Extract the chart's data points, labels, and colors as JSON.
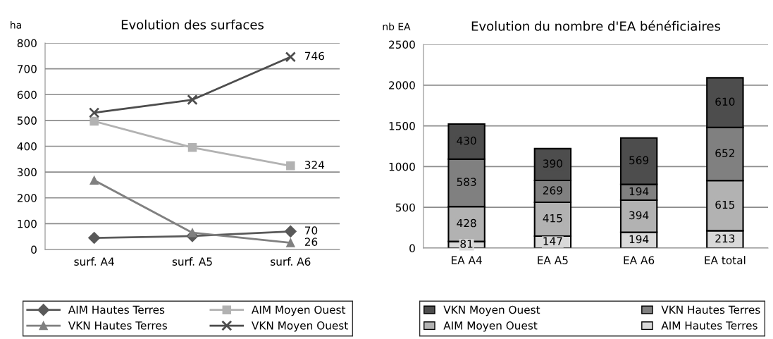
{
  "chart_data": [
    {
      "type": "line",
      "title": "Evolution des surfaces",
      "ylabel": "ha",
      "categories": [
        "surf. A4",
        "surf. A5",
        "surf. A6"
      ],
      "series": [
        {
          "name": "AIM Hautes Terres",
          "color": "#595959",
          "marker": "diamond",
          "values": [
            45,
            52,
            70
          ],
          "value_labels": [
            null,
            null,
            "70"
          ]
        },
        {
          "name": "AIM Moyen Ouest",
          "color": "#b2b2b2",
          "marker": "square",
          "values": [
            497,
            395,
            324
          ],
          "value_labels": [
            null,
            null,
            "324"
          ]
        },
        {
          "name": "VKN Hautes Terres",
          "color": "#808080",
          "marker": "triangle",
          "values": [
            268,
            65,
            26
          ],
          "value_labels": [
            null,
            null,
            "26"
          ]
        },
        {
          "name": "VKN Moyen Ouest",
          "color": "#4d4d4d",
          "marker": "cross",
          "values": [
            530,
            580,
            746
          ],
          "value_labels": [
            null,
            null,
            "746"
          ]
        }
      ],
      "ylim": [
        0,
        800
      ],
      "yticks": [
        0,
        100,
        200,
        300,
        400,
        500,
        600,
        700,
        800
      ],
      "grid": "y",
      "legend": "bottom"
    },
    {
      "type": "bar",
      "stacked": true,
      "title": "Evolution du nombre d'EA bénéficiaires",
      "ylabel": "nb EA",
      "categories": [
        "EA A4",
        "EA A5",
        "EA A6",
        "EA total"
      ],
      "series": [
        {
          "name": "AIM Hautes Terres",
          "color": "#d9d9d9",
          "values": [
            81,
            147,
            194,
            213
          ]
        },
        {
          "name": "AIM Moyen Ouest",
          "color": "#b2b2b2",
          "values": [
            428,
            415,
            394,
            615
          ]
        },
        {
          "name": "VKN Hautes Terres",
          "color": "#808080",
          "values": [
            583,
            269,
            194,
            652
          ]
        },
        {
          "name": "VKN Moyen Ouest",
          "color": "#4d4d4d",
          "values": [
            430,
            390,
            569,
            610
          ]
        }
      ],
      "ylim": [
        0,
        2500
      ],
      "yticks": [
        0,
        500,
        1000,
        1500,
        2000,
        2500
      ],
      "grid": "y",
      "data_labels": true,
      "legend": "bottom"
    }
  ]
}
